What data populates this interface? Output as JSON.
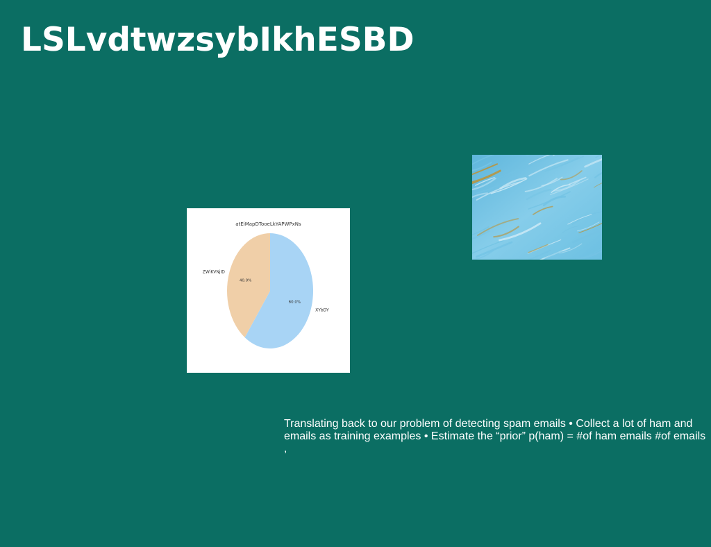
{
  "slide": {
    "title": "LSLvdtwzsybIkhESBD",
    "body_text": "Translating back to our problem of detecting spam emails • Collect a lot of ham and\nemails as training examples • Estimate the “prior” p(ham) = #of ham emails #of emails ,",
    "background_color": "#0b6e63"
  },
  "chart_data": {
    "type": "pie",
    "title": "atEiMapDTooeLkYAPWPxNs",
    "categories": [
      "XYbDY",
      "ZWiKVNjID"
    ],
    "values": [
      60.0,
      40.0
    ],
    "value_labels": [
      "60.0%",
      "40.0%"
    ],
    "colors": [
      "#a8d4f5",
      "#f0cfa8"
    ],
    "start_angle_deg": 90,
    "direction": "clockwise"
  },
  "image": {
    "icon": "fluorescent-microscopy-texture",
    "colors": [
      "#74c3e4",
      "#c9e8f5",
      "#b8953f"
    ]
  }
}
